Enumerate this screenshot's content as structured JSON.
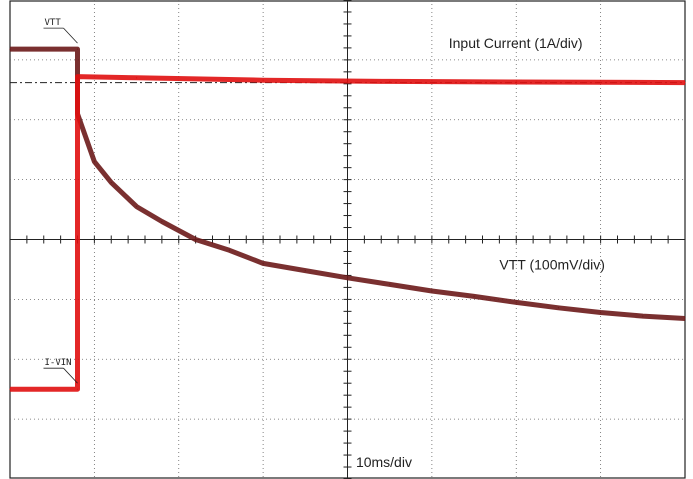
{
  "chart_data": {
    "type": "line",
    "title": "",
    "xlabel": "",
    "ylabel": "",
    "grid": true,
    "grid_divisions": {
      "x": 8,
      "y": 8
    },
    "x_unit": "div",
    "y_unit": "div",
    "x_range": [
      0,
      8
    ],
    "y_range": [
      0,
      8
    ],
    "timebase_label": "10ms/div",
    "series": [
      {
        "name": "VTT (100mV/div)",
        "marker": "VTT",
        "color": "#6b1a1a",
        "points": [
          [
            0.0,
            7.18
          ],
          [
            0.8,
            7.18
          ],
          [
            0.8,
            6.1
          ],
          [
            1.0,
            5.3
          ],
          [
            1.2,
            4.95
          ],
          [
            1.5,
            4.55
          ],
          [
            1.8,
            4.3
          ],
          [
            2.2,
            4.0
          ],
          [
            2.6,
            3.82
          ],
          [
            3.0,
            3.6
          ],
          [
            3.5,
            3.48
          ],
          [
            4.0,
            3.36
          ],
          [
            4.5,
            3.25
          ],
          [
            5.0,
            3.14
          ],
          [
            5.5,
            3.05
          ],
          [
            6.0,
            2.95
          ],
          [
            6.5,
            2.86
          ],
          [
            7.0,
            2.78
          ],
          [
            7.5,
            2.72
          ],
          [
            8.0,
            2.68
          ]
        ]
      },
      {
        "name": "Input Current (1A/div)",
        "marker": "I-VIN",
        "color": "#e01010",
        "points": [
          [
            0.0,
            1.5
          ],
          [
            0.8,
            1.5
          ],
          [
            0.8,
            6.72
          ],
          [
            1.5,
            6.7
          ],
          [
            3.0,
            6.66
          ],
          [
            4.5,
            6.64
          ],
          [
            6.0,
            6.63
          ],
          [
            8.0,
            6.62
          ]
        ]
      }
    ],
    "reference_line": {
      "y": 6.62
    },
    "annotations": [
      {
        "text": "Input Current (1A/div)",
        "x": 5.2,
        "y": 7.1
      },
      {
        "text": "VTT (100mV/div)",
        "x": 5.8,
        "y": 3.4
      },
      {
        "text": "10ms/div",
        "x": 4.1,
        "y": 0.1
      }
    ]
  }
}
